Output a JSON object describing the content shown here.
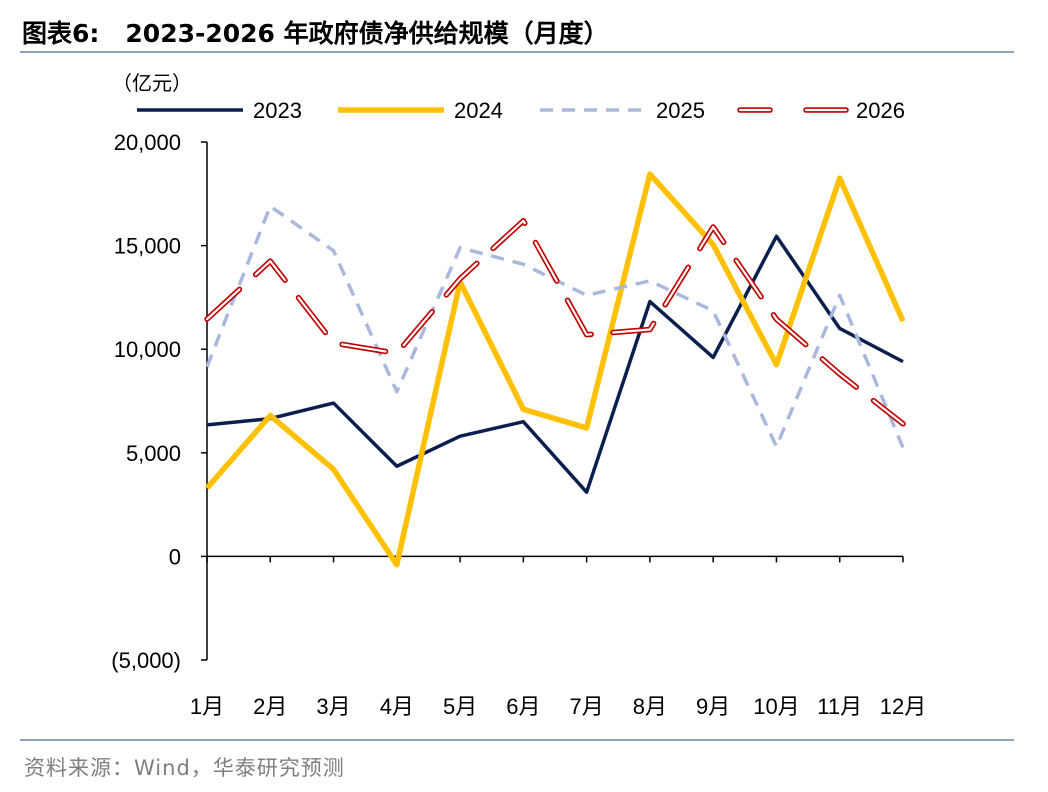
{
  "title": {
    "prefix": "图表6:",
    "text": "2023-2026 年政府债净供给规模（月度）"
  },
  "source": "资料来源：Wind，华泰研究预测",
  "chart_data": {
    "type": "line",
    "title": "2023-2026 年政府债净供给规模（月度）",
    "unit_label": "（亿元）",
    "xlabel": "",
    "ylabel": "（亿元）",
    "categories": [
      "1月",
      "2月",
      "3月",
      "4月",
      "5月",
      "6月",
      "7月",
      "8月",
      "9月",
      "10月",
      "11月",
      "12月"
    ],
    "ylim": [
      -5000,
      20000
    ],
    "yticks": [
      -5000,
      0,
      5000,
      10000,
      15000,
      20000
    ],
    "ytick_labels": [
      "(5,000)",
      "0",
      "5,000",
      "10,000",
      "15,000",
      "20,000"
    ],
    "grid": false,
    "legend_position": "top",
    "series": [
      {
        "name": "2023",
        "color": "#0b1f4f",
        "style": "solid",
        "values": [
          6350,
          6650,
          7400,
          4350,
          5800,
          6500,
          3100,
          12300,
          9600,
          15450,
          11000,
          9400
        ]
      },
      {
        "name": "2024",
        "color": "#ffc000",
        "style": "solid",
        "values": [
          3300,
          6800,
          4200,
          -400,
          13250,
          7100,
          6200,
          18450,
          15050,
          9250,
          18250,
          11350
        ]
      },
      {
        "name": "2025",
        "color": "#a9b8dc",
        "style": "dashed",
        "values": [
          9150,
          16900,
          14750,
          7950,
          14900,
          14100,
          12600,
          13300,
          11850,
          5300,
          12600,
          5250
        ]
      },
      {
        "name": "2026",
        "color": "#c00000",
        "style": "double-dashed",
        "values": [
          11450,
          14250,
          10300,
          9800,
          13400,
          16200,
          10700,
          10950,
          15900,
          11450,
          8800,
          6400
        ]
      }
    ]
  }
}
